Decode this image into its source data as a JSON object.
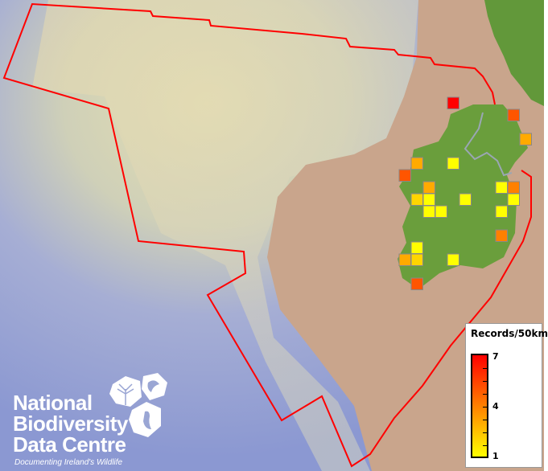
{
  "legend": {
    "title": "Records/50km",
    "max_label": "7",
    "mid_label": "4",
    "min_label": "1",
    "colors": {
      "min": "#ffff00",
      "mid": "#ff8000",
      "max": "#ff0000"
    }
  },
  "logo": {
    "line1": "National",
    "line2": "Biodiversity",
    "line3": "Data Centre",
    "tagline": "Documenting Ireland's Wildlife"
  },
  "map": {
    "boundary_color": "#ff0000",
    "land_color": "#6a9e3c",
    "cells": [
      {
        "col": 4,
        "row": 0,
        "records": 7
      },
      {
        "col": 9,
        "row": 1,
        "records": 5
      },
      {
        "col": 10,
        "row": 3,
        "records": 3
      },
      {
        "col": 1,
        "row": 5,
        "records": 3
      },
      {
        "col": 4,
        "row": 5,
        "records": 1
      },
      {
        "col": 0,
        "row": 6,
        "records": 5
      },
      {
        "col": 2,
        "row": 7,
        "records": 3
      },
      {
        "col": 8,
        "row": 7,
        "records": 1
      },
      {
        "col": 9,
        "row": 7,
        "records": 4
      },
      {
        "col": 1,
        "row": 8,
        "records": 2
      },
      {
        "col": 2,
        "row": 8,
        "records": 1
      },
      {
        "col": 5,
        "row": 8,
        "records": 1
      },
      {
        "col": 9,
        "row": 8,
        "records": 1
      },
      {
        "col": 2,
        "row": 9,
        "records": 1
      },
      {
        "col": 3,
        "row": 9,
        "records": 1
      },
      {
        "col": 8,
        "row": 9,
        "records": 1
      },
      {
        "col": 8,
        "row": 11,
        "records": 4
      },
      {
        "col": 1,
        "row": 12,
        "records": 1
      },
      {
        "col": 0,
        "row": 13,
        "records": 3
      },
      {
        "col": 1,
        "row": 13,
        "records": 2
      },
      {
        "col": 4,
        "row": 13,
        "records": 1
      },
      {
        "col": 1,
        "row": 15,
        "records": 5
      }
    ]
  }
}
